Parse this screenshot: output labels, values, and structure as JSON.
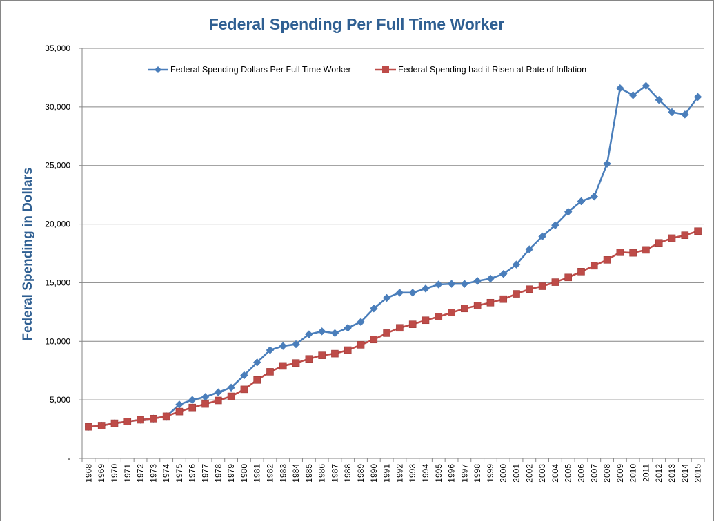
{
  "chart_data": {
    "type": "line",
    "title": "Federal Spending Per Full Time Worker",
    "xlabel": "",
    "ylabel": "Federal Spending in Dollars",
    "ylim": [
      0,
      35000
    ],
    "y_ticks": [
      0,
      5000,
      10000,
      15000,
      20000,
      25000,
      30000,
      35000
    ],
    "y_tick_labels": [
      "-",
      "5,000",
      "10,000",
      "15,000",
      "20,000",
      "25,000",
      "30,000",
      "35,000"
    ],
    "grid": true,
    "legend_position": "top",
    "categories": [
      "1968",
      "1969",
      "1970",
      "1971",
      "1972",
      "1973",
      "1974",
      "1975",
      "1976",
      "1977",
      "1978",
      "1979",
      "1980",
      "1981",
      "1982",
      "1983",
      "1984",
      "1985",
      "1986",
      "1987",
      "1988",
      "1989",
      "1990",
      "1991",
      "1992",
      "1993",
      "1994",
      "1995",
      "1996",
      "1997",
      "1998",
      "1999",
      "2000",
      "2001",
      "2002",
      "2003",
      "2004",
      "2005",
      "2006",
      "2007",
      "2008",
      "2009",
      "2010",
      "2011",
      "2012",
      "2013",
      "2014",
      "2015"
    ],
    "series": [
      {
        "name": "Federal Spending Dollars Per Full Time Worker",
        "color": "#4a7ebb",
        "marker": "diamond",
        "values": [
          2700,
          2800,
          3000,
          3150,
          3300,
          3400,
          3600,
          4600,
          5000,
          5250,
          5650,
          6050,
          7100,
          8200,
          9250,
          9600,
          9750,
          10600,
          10850,
          10700,
          11150,
          11650,
          12800,
          13700,
          14150,
          14150,
          14500,
          14850,
          14900,
          14900,
          15150,
          15350,
          15750,
          16550,
          17850,
          18950,
          19900,
          21050,
          21950,
          22350,
          25150,
          31600,
          31000,
          31800,
          30600,
          29550,
          29350,
          30850
        ]
      },
      {
        "name": "Federal Spending had it Risen at Rate of Inflation",
        "color": "#be4b48",
        "marker": "square",
        "values": [
          2700,
          2800,
          3000,
          3150,
          3300,
          3400,
          3600,
          4000,
          4350,
          4650,
          4950,
          5300,
          5900,
          6700,
          7400,
          7900,
          8150,
          8500,
          8800,
          8950,
          9250,
          9700,
          10150,
          10700,
          11150,
          11450,
          11800,
          12100,
          12450,
          12800,
          13050,
          13300,
          13600,
          14050,
          14450,
          14700,
          15050,
          15450,
          15950,
          16450,
          16950,
          17600,
          17550,
          17800,
          18400,
          18800,
          19050,
          19400
        ]
      }
    ]
  }
}
